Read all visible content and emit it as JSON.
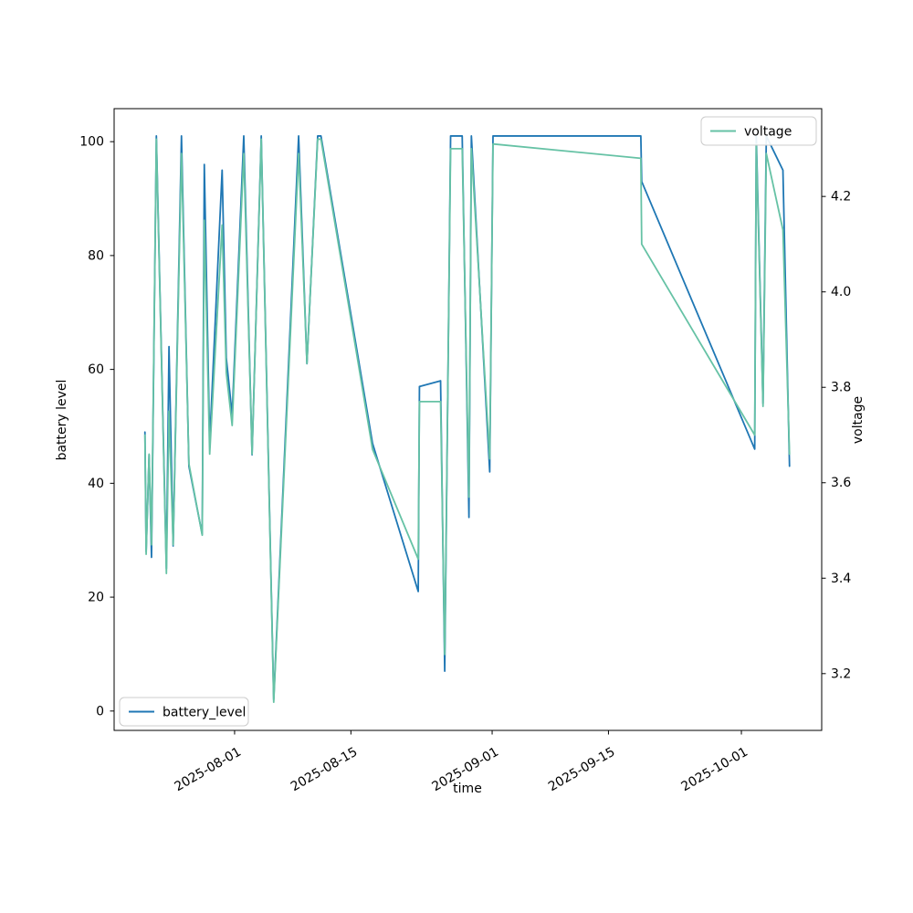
{
  "figure": {
    "background": "#ffffff",
    "xlabel": "time",
    "ylabel_left": "battery level",
    "ylabel_right": "voltage",
    "legend_battery_label": "battery_level",
    "legend_voltage_label": "voltage",
    "battery_color": "#1f77b4",
    "voltage_color": "#66c2a5",
    "spine_color": "#000000",
    "legend_border_color": "#cccccc"
  },
  "chart_data": {
    "type": "line",
    "title": "",
    "xlabel": "time",
    "ylabel_left": "battery level",
    "ylabel_right": "voltage",
    "grid": false,
    "legend_positions": {
      "voltage": "upper right",
      "battery_level": "lower left"
    },
    "x_axis": {
      "kind": "datetime",
      "min": "2025-07-17 12:00",
      "max": "2025-10-10 16:00",
      "ticks": [
        {
          "label": "2025-08-01",
          "t": "2025-08-01 00:00"
        },
        {
          "label": "2025-08-15",
          "t": "2025-08-15 00:00"
        },
        {
          "label": "2025-09-01",
          "t": "2025-09-01 00:00"
        },
        {
          "label": "2025-09-15",
          "t": "2025-09-15 00:00"
        },
        {
          "label": "2025-10-01",
          "t": "2025-10-01 00:00"
        }
      ]
    },
    "y_left": {
      "label": "battery level",
      "min": -3.4,
      "max": 105.8,
      "ticks": [
        0,
        20,
        40,
        60,
        80,
        100
      ]
    },
    "y_right": {
      "label": "voltage",
      "min": 3.081,
      "max": 4.384,
      "ticks": [
        3.2,
        3.4,
        3.6,
        3.8,
        4.0,
        4.2
      ]
    },
    "series": [
      {
        "name": "battery_level",
        "axis": "left",
        "color": "#1f77b4",
        "points": [
          {
            "t": "2025-07-21 05:00",
            "v": 49
          },
          {
            "t": "2025-07-21 08:30",
            "v": 28
          },
          {
            "t": "2025-07-21 17:00",
            "v": 45
          },
          {
            "t": "2025-07-22 00:00",
            "v": 27
          },
          {
            "t": "2025-07-22 14:00",
            "v": 101
          },
          {
            "t": "2025-07-23 19:00",
            "v": 25
          },
          {
            "t": "2025-07-24 02:30",
            "v": 64
          },
          {
            "t": "2025-07-24 14:30",
            "v": 29
          },
          {
            "t": "2025-07-25 14:30",
            "v": 101
          },
          {
            "t": "2025-07-26 12:00",
            "v": 43
          },
          {
            "t": "2025-07-28 02:30",
            "v": 31
          },
          {
            "t": "2025-07-28 08:30",
            "v": 96
          },
          {
            "t": "2025-07-29 00:00",
            "v": 47
          },
          {
            "t": "2025-07-30 12:00",
            "v": 95
          },
          {
            "t": "2025-07-31 00:00",
            "v": 62
          },
          {
            "t": "2025-07-31 17:00",
            "v": 52
          },
          {
            "t": "2025-08-02 02:30",
            "v": 101
          },
          {
            "t": "2025-08-03 02:30",
            "v": 45
          },
          {
            "t": "2025-08-04 05:00",
            "v": 101
          },
          {
            "t": "2025-08-05 17:00",
            "v": 2
          },
          {
            "t": "2025-08-08 17:00",
            "v": 101
          },
          {
            "t": "2025-08-09 17:00",
            "v": 61
          },
          {
            "t": "2025-08-11 00:00",
            "v": 101
          },
          {
            "t": "2025-08-11 09:30",
            "v": 101
          },
          {
            "t": "2025-08-17 14:30",
            "v": 47
          },
          {
            "t": "2025-08-23 02:30",
            "v": 21
          },
          {
            "t": "2025-08-23 06:00",
            "v": 57
          },
          {
            "t": "2025-08-25 19:00",
            "v": 58
          },
          {
            "t": "2025-08-26 07:00",
            "v": 7
          },
          {
            "t": "2025-08-27 00:00",
            "v": 101
          },
          {
            "t": "2025-08-28 09:30",
            "v": 101
          },
          {
            "t": "2025-08-29 05:00",
            "v": 34
          },
          {
            "t": "2025-08-29 12:00",
            "v": 101
          },
          {
            "t": "2025-08-31 17:00",
            "v": 42
          },
          {
            "t": "2025-09-01 02:30",
            "v": 101
          },
          {
            "t": "2025-09-18 21:30",
            "v": 101
          },
          {
            "t": "2025-09-19 00:00",
            "v": 93
          },
          {
            "t": "2025-10-02 14:30",
            "v": 46
          },
          {
            "t": "2025-10-02 19:00",
            "v": 101
          },
          {
            "t": "2025-10-03 14:30",
            "v": 54
          },
          {
            "t": "2025-10-04 00:00",
            "v": 101
          },
          {
            "t": "2025-10-06 00:00",
            "v": 95
          },
          {
            "t": "2025-10-06 19:00",
            "v": 43
          }
        ]
      },
      {
        "name": "voltage",
        "axis": "right",
        "color": "#66c2a5",
        "points": [
          {
            "t": "2025-07-21 05:00",
            "v": 3.7
          },
          {
            "t": "2025-07-21 08:30",
            "v": 3.45
          },
          {
            "t": "2025-07-21 17:00",
            "v": 3.66
          },
          {
            "t": "2025-07-22 00:00",
            "v": 3.47
          },
          {
            "t": "2025-07-22 14:00",
            "v": 4.32
          },
          {
            "t": "2025-07-23 19:00",
            "v": 3.41
          },
          {
            "t": "2025-07-24 02:30",
            "v": 3.75
          },
          {
            "t": "2025-07-24 14:30",
            "v": 3.47
          },
          {
            "t": "2025-07-25 14:30",
            "v": 4.29
          },
          {
            "t": "2025-07-26 12:00",
            "v": 3.64
          },
          {
            "t": "2025-07-28 02:30",
            "v": 3.49
          },
          {
            "t": "2025-07-28 08:30",
            "v": 4.15
          },
          {
            "t": "2025-07-29 00:00",
            "v": 3.66
          },
          {
            "t": "2025-07-30 12:00",
            "v": 4.14
          },
          {
            "t": "2025-07-31 00:00",
            "v": 3.83
          },
          {
            "t": "2025-07-31 17:00",
            "v": 3.72
          },
          {
            "t": "2025-08-02 02:30",
            "v": 4.29
          },
          {
            "t": "2025-08-03 02:30",
            "v": 3.66
          },
          {
            "t": "2025-08-04 05:00",
            "v": 4.32
          },
          {
            "t": "2025-08-05 17:00",
            "v": 3.14
          },
          {
            "t": "2025-08-08 17:00",
            "v": 4.29
          },
          {
            "t": "2025-08-09 17:00",
            "v": 3.85
          },
          {
            "t": "2025-08-11 00:00",
            "v": 4.32
          },
          {
            "t": "2025-08-11 09:30",
            "v": 4.32
          },
          {
            "t": "2025-08-17 14:30",
            "v": 3.67
          },
          {
            "t": "2025-08-23 02:30",
            "v": 3.44
          },
          {
            "t": "2025-08-23 06:00",
            "v": 3.77
          },
          {
            "t": "2025-08-25 19:00",
            "v": 3.77
          },
          {
            "t": "2025-08-26 07:00",
            "v": 3.24
          },
          {
            "t": "2025-08-27 00:00",
            "v": 4.3
          },
          {
            "t": "2025-08-28 09:30",
            "v": 4.3
          },
          {
            "t": "2025-08-29 05:00",
            "v": 3.57
          },
          {
            "t": "2025-08-29 12:00",
            "v": 4.3
          },
          {
            "t": "2025-08-31 17:00",
            "v": 3.65
          },
          {
            "t": "2025-09-01 02:30",
            "v": 4.31
          },
          {
            "t": "2025-09-18 21:30",
            "v": 4.28
          },
          {
            "t": "2025-09-19 00:00",
            "v": 4.1
          },
          {
            "t": "2025-10-02 14:30",
            "v": 3.7
          },
          {
            "t": "2025-10-02 19:00",
            "v": 4.31
          },
          {
            "t": "2025-10-03 14:30",
            "v": 3.76
          },
          {
            "t": "2025-10-04 00:00",
            "v": 4.29
          },
          {
            "t": "2025-10-06 00:00",
            "v": 4.13
          },
          {
            "t": "2025-10-06 19:00",
            "v": 3.66
          }
        ]
      }
    ]
  }
}
